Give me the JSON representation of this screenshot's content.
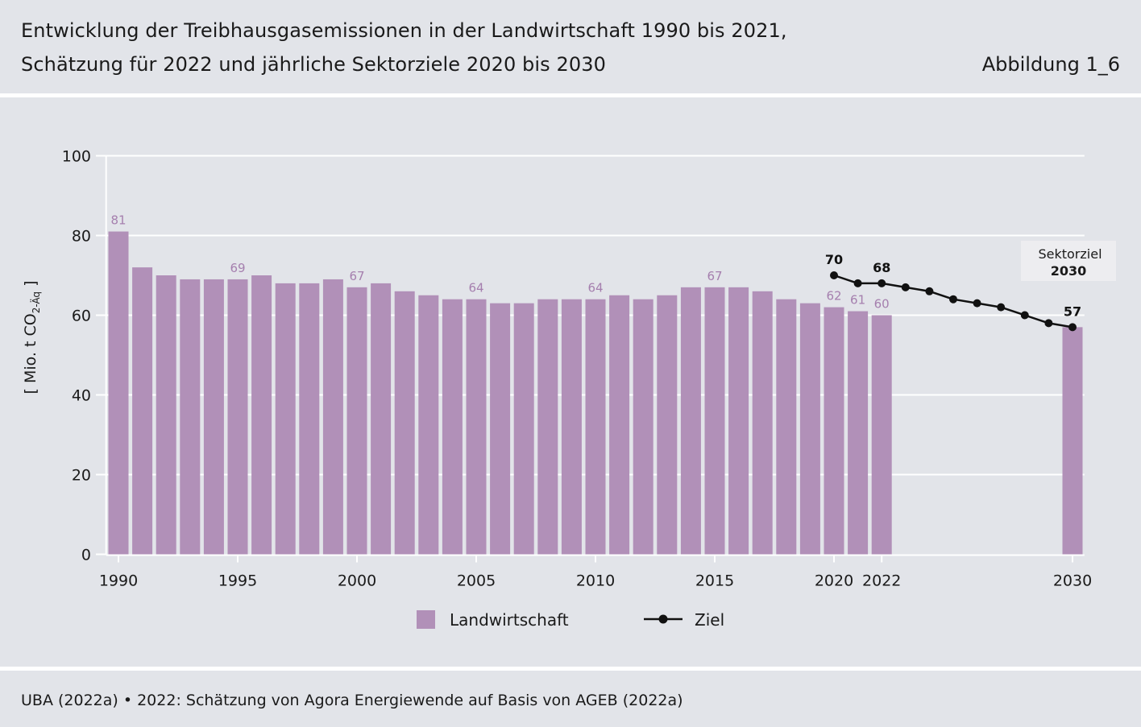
{
  "header": {
    "title_line1": "Entwicklung der Treibhausgasemissionen in der Landwirtschaft 1990 bis 2021,",
    "title_line2": "Schätzung für 2022 und jährliche Sektorziele 2020 bis 2030",
    "figure_label": "Abbildung 1_6"
  },
  "footer": {
    "source": "UBA (2022a) • 2022: Schätzung von Agora Energiewende auf Basis von AGEB (2022a)"
  },
  "chart_data": {
    "type": "bar",
    "ylabel_main": "[ Mio. t CO",
    "ylabel_sub": "2-Äq",
    "ylabel_end": " ]",
    "ylim": [
      0,
      100
    ],
    "yticks": [
      0,
      20,
      40,
      60,
      80,
      100
    ],
    "xlim": [
      1989.5,
      2030.5
    ],
    "xticks": [
      1990,
      1995,
      2000,
      2005,
      2010,
      2015,
      2020,
      2022,
      2030
    ],
    "grid": true,
    "colors": {
      "bar": "#b190b8",
      "bar_label": "#a57fae",
      "line": "#111111",
      "grid": "#ffffff",
      "axis": "#ffffff"
    },
    "series": [
      {
        "name": "Landwirtschaft",
        "type": "bar",
        "x": [
          1990,
          1991,
          1992,
          1993,
          1994,
          1995,
          1996,
          1997,
          1998,
          1999,
          2000,
          2001,
          2002,
          2003,
          2004,
          2005,
          2006,
          2007,
          2008,
          2009,
          2010,
          2011,
          2012,
          2013,
          2014,
          2015,
          2016,
          2017,
          2018,
          2019,
          2020,
          2021,
          2022,
          2030
        ],
        "values": [
          81,
          72,
          70,
          69,
          69,
          69,
          70,
          68,
          68,
          69,
          67,
          68,
          66,
          65,
          64,
          64,
          63,
          63,
          64,
          64,
          64,
          65,
          64,
          65,
          67,
          67,
          67,
          66,
          64,
          63,
          62,
          61,
          60,
          57
        ],
        "labels": [
          {
            "x": 1990,
            "text": "81"
          },
          {
            "x": 1995,
            "text": "69"
          },
          {
            "x": 2000,
            "text": "67"
          },
          {
            "x": 2005,
            "text": "64"
          },
          {
            "x": 2010,
            "text": "64"
          },
          {
            "x": 2015,
            "text": "67"
          },
          {
            "x": 2020,
            "text": "62"
          },
          {
            "x": 2021,
            "text": "61"
          },
          {
            "x": 2022,
            "text": "60"
          }
        ]
      },
      {
        "name": "Ziel",
        "type": "line",
        "x": [
          2020,
          2021,
          2022,
          2023,
          2024,
          2025,
          2026,
          2027,
          2028,
          2029,
          2030
        ],
        "values": [
          70,
          68,
          68,
          67,
          66,
          64,
          63,
          62,
          60,
          58,
          57
        ],
        "labels": [
          {
            "x": 2020,
            "text": "70"
          },
          {
            "x": 2022,
            "text": "68"
          },
          {
            "x": 2030,
            "text": "57"
          }
        ]
      }
    ],
    "annotation": {
      "line1": "Sektorziel",
      "line2": "2030"
    },
    "legend": {
      "position": "bottom-center",
      "items": [
        "Landwirtschaft",
        "Ziel"
      ]
    }
  }
}
